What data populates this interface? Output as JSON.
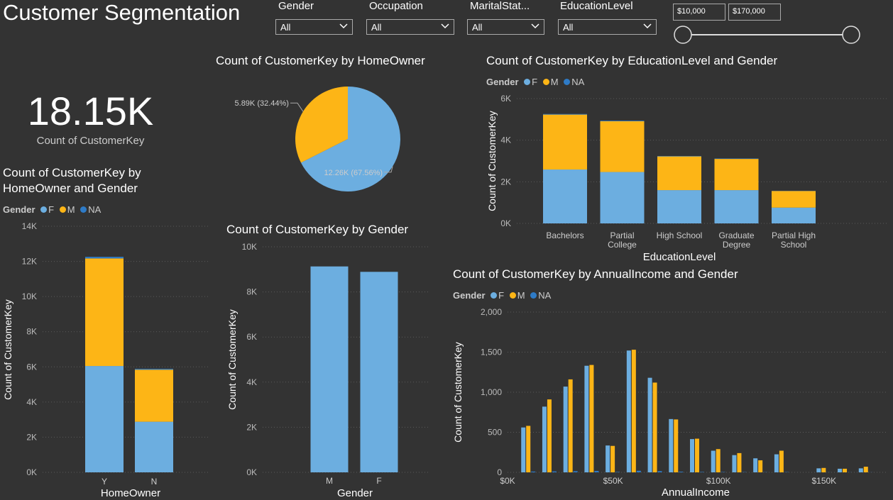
{
  "title": "Customer Segmentation",
  "colors": {
    "F": "#6CAEE0",
    "M": "#FDB516",
    "NA": "#2E7BC7",
    "background": "#333333"
  },
  "slicers": [
    {
      "label": "Gender",
      "value": "All"
    },
    {
      "label": "Occupation",
      "value": "All"
    },
    {
      "label": "MaritalStat...",
      "value": "All"
    },
    {
      "label": "EducationLevel",
      "value": "All"
    }
  ],
  "income_range": {
    "min": "$10,000",
    "max": "$170,000"
  },
  "kpi": {
    "value": "18.15K",
    "label": "Count of CustomerKey"
  },
  "legend": {
    "title": "Gender",
    "items": [
      "F",
      "M",
      "NA"
    ]
  },
  "chart_data": [
    {
      "id": "homeowner_pie",
      "type": "pie",
      "title": "Count of CustomerKey by HomeOwner",
      "slices": [
        {
          "label": "Y",
          "value": 12260,
          "text": "12.26K (67.56%)",
          "color": "#6CAEE0"
        },
        {
          "label": "N",
          "value": 5890,
          "text": "5.89K (32.44%)",
          "color": "#FDB516"
        }
      ]
    },
    {
      "id": "homeowner_gender",
      "type": "bar",
      "stacked": true,
      "title_lines": [
        "Count of CustomerKey by",
        "HomeOwner and Gender"
      ],
      "xlabel": "HomeOwner",
      "ylabel": "Count of CustomerKey",
      "categories": [
        "Y",
        "N"
      ],
      "ylim": [
        0,
        14000
      ],
      "yticks": [
        0,
        2000,
        4000,
        6000,
        8000,
        10000,
        12000,
        14000
      ],
      "ytick_labels": [
        "0K",
        "2K",
        "4K",
        "6K",
        "8K",
        "10K",
        "12K",
        "14K"
      ],
      "grid": true,
      "series": [
        {
          "name": "F",
          "values": [
            6050,
            2880
          ]
        },
        {
          "name": "M",
          "values": [
            6120,
            2960
          ]
        },
        {
          "name": "NA",
          "values": [
            90,
            50
          ]
        }
      ]
    },
    {
      "id": "gender",
      "type": "bar",
      "title": "Count of CustomerKey by Gender",
      "xlabel": "Gender",
      "ylabel": "Count of CustomerKey",
      "categories": [
        "M",
        "F"
      ],
      "values": [
        9130,
        8890
      ],
      "ylim": [
        0,
        10000
      ],
      "yticks": [
        0,
        2000,
        4000,
        6000,
        8000,
        10000
      ],
      "ytick_labels": [
        "0K",
        "2K",
        "4K",
        "6K",
        "8K",
        "10K"
      ],
      "grid": true
    },
    {
      "id": "education_gender",
      "type": "bar",
      "stacked": true,
      "title": "Count of CustomerKey by EducationLevel and Gender",
      "xlabel": "EducationLevel",
      "ylabel": "Count of CustomerKey",
      "categories": [
        "Bachelors",
        "Partial College",
        "High School",
        "Graduate Degree",
        "Partial High School"
      ],
      "category_lines": [
        [
          "Bachelors"
        ],
        [
          "Partial",
          "College"
        ],
        [
          "High School"
        ],
        [
          "Graduate",
          "Degree"
        ],
        [
          "Partial High",
          "School"
        ]
      ],
      "ylim": [
        0,
        6000
      ],
      "yticks": [
        0,
        2000,
        4000,
        6000
      ],
      "ytick_labels": [
        "0K",
        "2K",
        "4K",
        "6K"
      ],
      "grid": true,
      "series": [
        {
          "name": "F",
          "values": [
            2590,
            2470,
            1600,
            1600,
            760
          ]
        },
        {
          "name": "M",
          "values": [
            2640,
            2440,
            1620,
            1500,
            800
          ]
        },
        {
          "name": "NA",
          "values": [
            30,
            30,
            20,
            20,
            10
          ]
        }
      ]
    },
    {
      "id": "income_gender",
      "type": "bar",
      "title": "Count of CustomerKey by AnnualIncome and Gender",
      "xlabel": "AnnualIncome",
      "ylabel": "Count of CustomerKey",
      "x": [
        10000,
        20000,
        30000,
        40000,
        50000,
        60000,
        70000,
        80000,
        90000,
        100000,
        110000,
        120000,
        130000,
        150000,
        160000,
        170000
      ],
      "xlim": [
        0,
        180000
      ],
      "xticks": [
        0,
        50000,
        100000,
        150000
      ],
      "xtick_labels": [
        "$0K",
        "$50K",
        "$100K",
        "$150K"
      ],
      "ylim": [
        0,
        2000
      ],
      "yticks": [
        0,
        500,
        1000,
        1500,
        2000
      ],
      "ytick_labels": [
        "0",
        "500",
        "1,000",
        "1,500",
        "2,000"
      ],
      "grid": true,
      "series": [
        {
          "name": "F",
          "values": [
            560,
            820,
            1070,
            1330,
            335,
            1520,
            1180,
            665,
            415,
            270,
            215,
            175,
            225,
            50,
            45,
            50
          ]
        },
        {
          "name": "M",
          "values": [
            580,
            910,
            1160,
            1340,
            330,
            1530,
            1120,
            660,
            420,
            290,
            240,
            150,
            270,
            55,
            45,
            70
          ]
        },
        {
          "name": "NA",
          "values": [
            10,
            12,
            15,
            18,
            5,
            20,
            15,
            8,
            5,
            4,
            3,
            2,
            3,
            1,
            1,
            1
          ]
        }
      ]
    }
  ]
}
